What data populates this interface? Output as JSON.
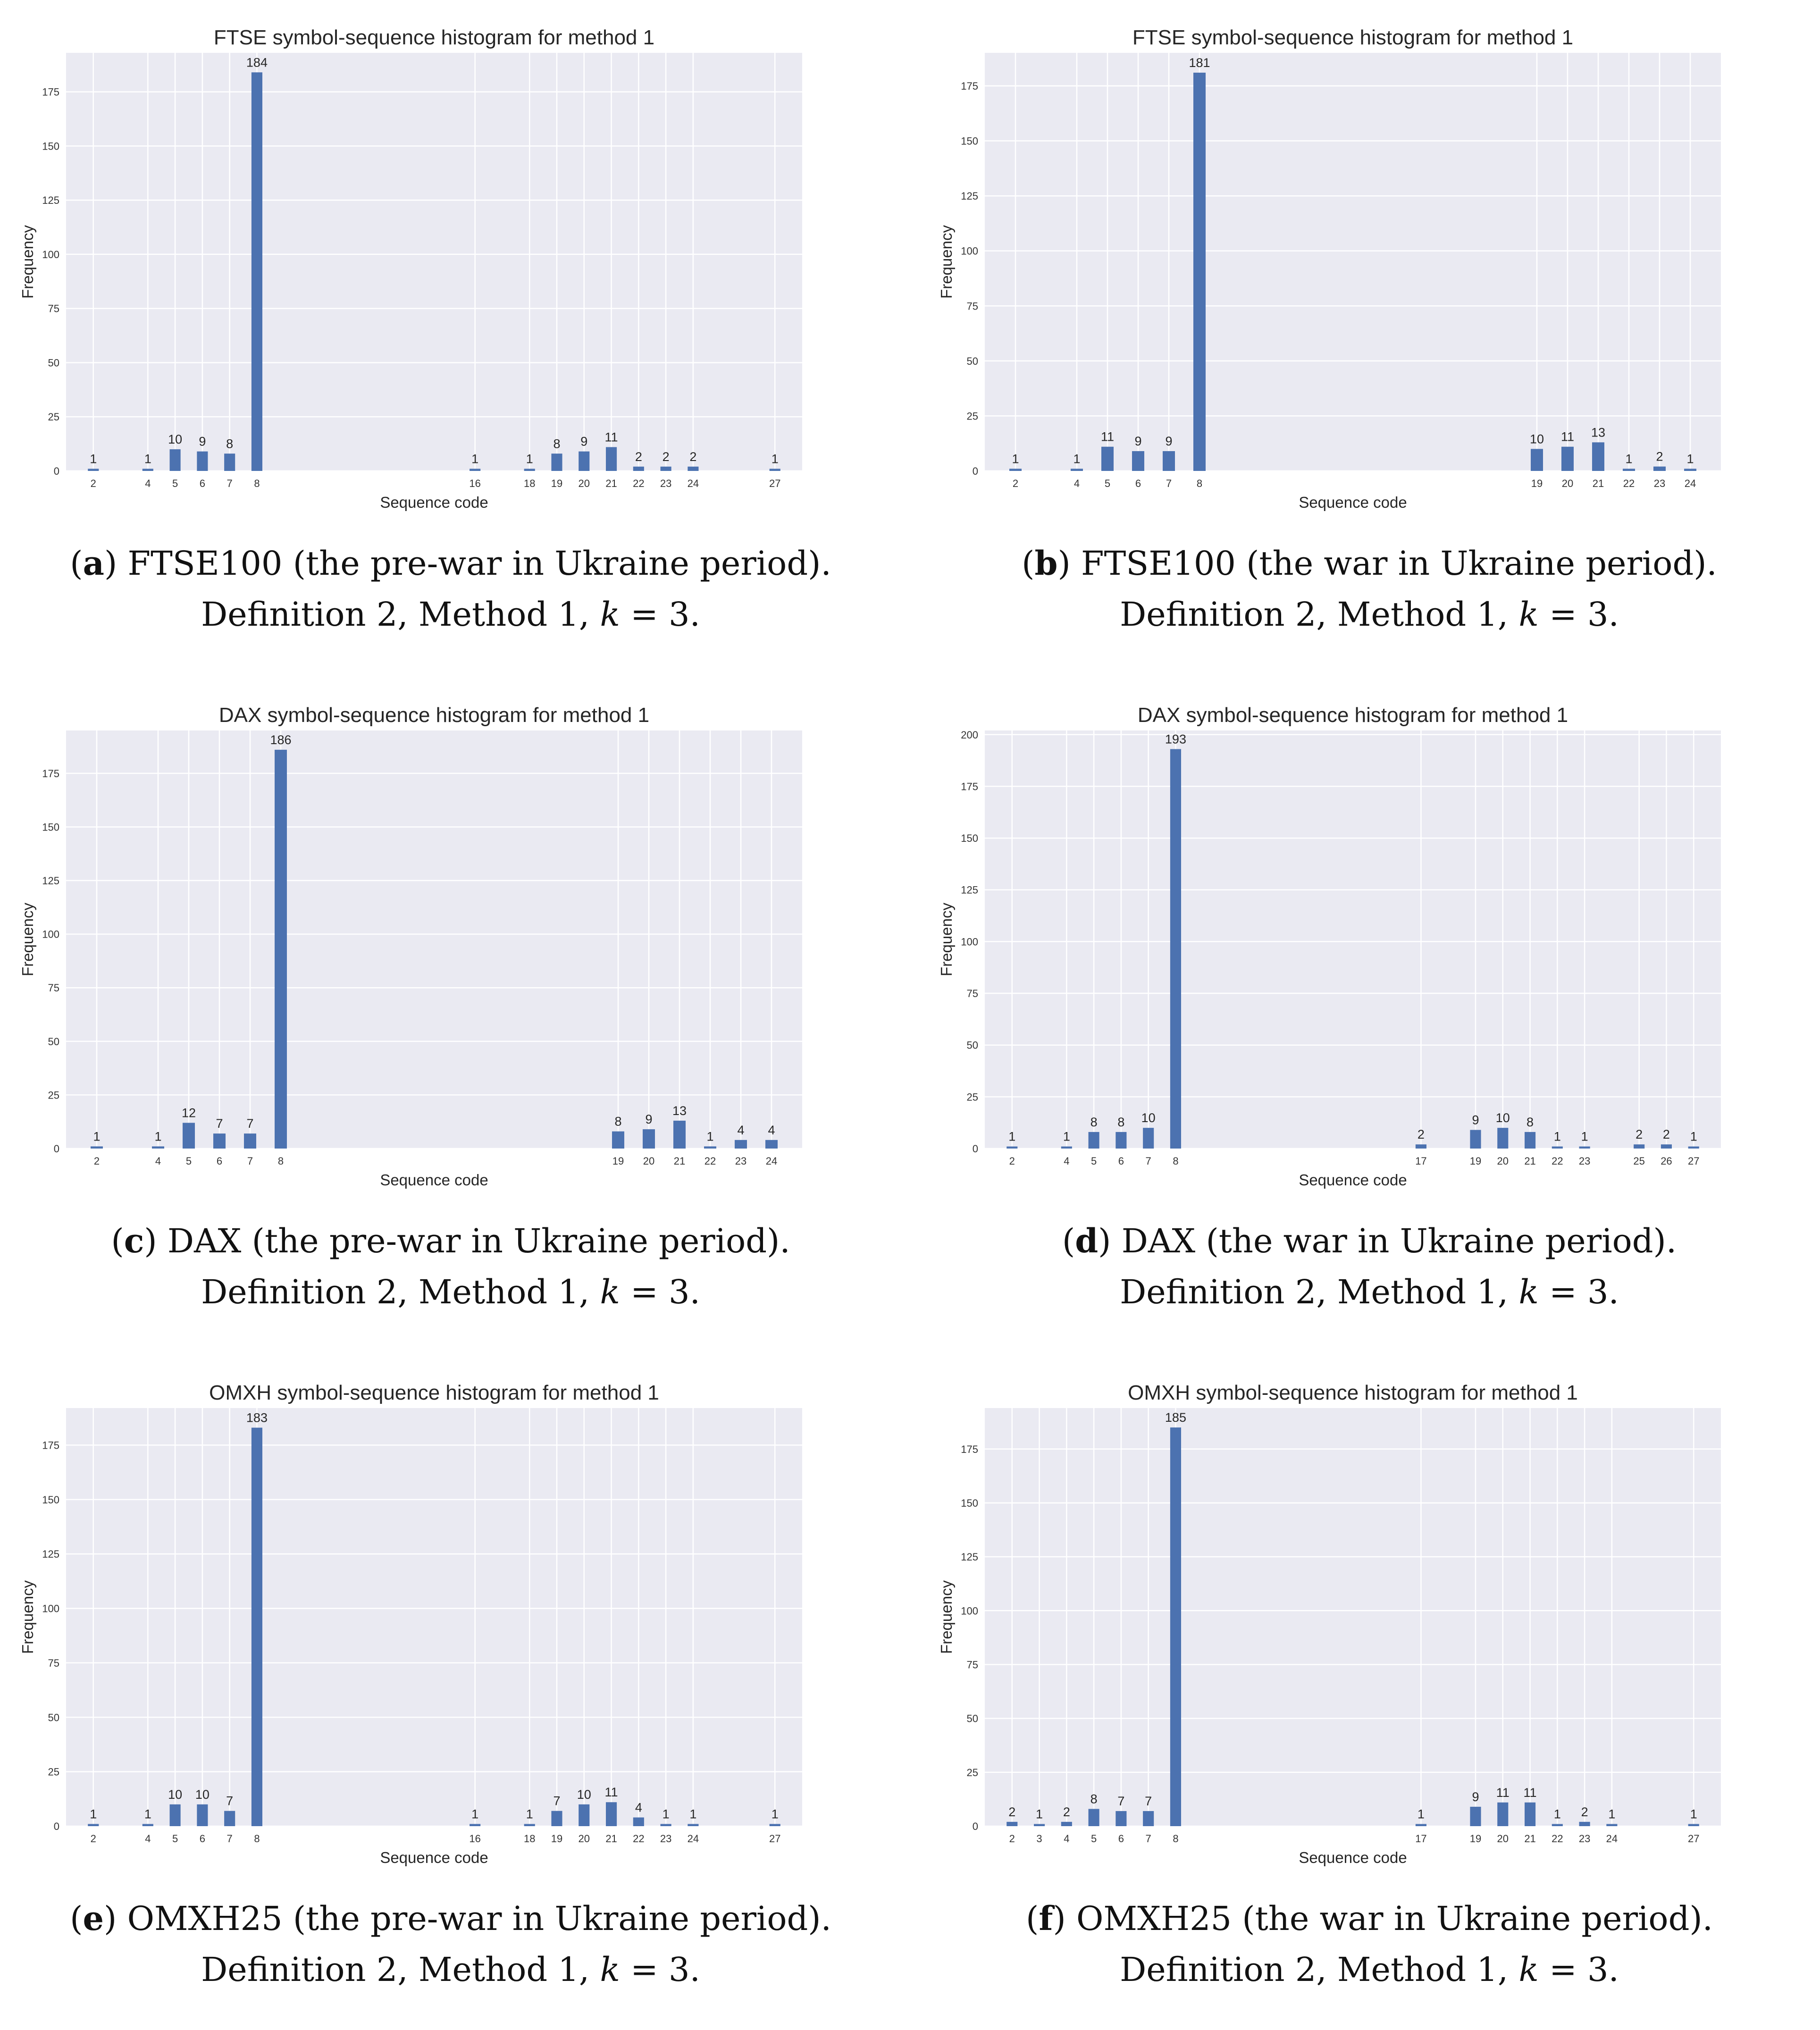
{
  "chart_data": [
    {
      "type": "bar",
      "title": "FTSE symbol-sequence histogram for method 1",
      "xlabel": "Sequence code",
      "ylabel": "Frequency",
      "categories": [
        "2",
        "4",
        "5",
        "6",
        "7",
        "8",
        "16",
        "18",
        "19",
        "20",
        "21",
        "22",
        "23",
        "24",
        "27"
      ],
      "values": [
        1,
        1,
        10,
        9,
        8,
        184,
        1,
        1,
        8,
        9,
        11,
        2,
        2,
        2,
        1
      ],
      "x_range": [
        1,
        28
      ],
      "ylim": [
        0,
        193
      ],
      "yticks": [
        0,
        25,
        50,
        75,
        100,
        125,
        150,
        175
      ],
      "color": "#4c72b0",
      "grid": true,
      "caption": {
        "label": "a",
        "text": "FTSE100 (the pre-war in Ukraine period).",
        "line2_pre": "Definition 2, Method 1,",
        "kvar": "k",
        "line2_post": "= 3."
      }
    },
    {
      "type": "bar",
      "title": "FTSE symbol-sequence histogram for method 1",
      "xlabel": "Sequence code",
      "ylabel": "Frequency",
      "categories": [
        "2",
        "4",
        "5",
        "6",
        "7",
        "8",
        "19",
        "20",
        "21",
        "22",
        "23",
        "24"
      ],
      "values": [
        1,
        1,
        11,
        9,
        9,
        181,
        10,
        11,
        13,
        1,
        2,
        1
      ],
      "x_range": [
        1,
        25
      ],
      "ylim": [
        0,
        190
      ],
      "yticks": [
        0,
        25,
        50,
        75,
        100,
        125,
        150,
        175
      ],
      "color": "#4c72b0",
      "grid": true,
      "caption": {
        "label": "b",
        "text": "FTSE100 (the war in Ukraine period).",
        "line2_pre": "Definition 2, Method 1,",
        "kvar": "k",
        "line2_post": "= 3."
      }
    },
    {
      "type": "bar",
      "title": "DAX symbol-sequence histogram for method 1",
      "xlabel": "Sequence code",
      "ylabel": "Frequency",
      "categories": [
        "2",
        "4",
        "5",
        "6",
        "7",
        "8",
        "19",
        "20",
        "21",
        "22",
        "23",
        "24"
      ],
      "values": [
        1,
        1,
        12,
        7,
        7,
        186,
        8,
        9,
        13,
        1,
        4,
        4
      ],
      "x_range": [
        1,
        25
      ],
      "ylim": [
        0,
        195
      ],
      "yticks": [
        0,
        25,
        50,
        75,
        100,
        125,
        150,
        175
      ],
      "color": "#4c72b0",
      "grid": true,
      "caption": {
        "label": "c",
        "text": "DAX (the pre-war in Ukraine period).",
        "line2_pre": "Definition 2, Method 1,",
        "kvar": "k",
        "line2_post": "= 3."
      }
    },
    {
      "type": "bar",
      "title": "DAX symbol-sequence histogram for method 1",
      "xlabel": "Sequence code",
      "ylabel": "Frequency",
      "categories": [
        "2",
        "4",
        "5",
        "6",
        "7",
        "8",
        "17",
        "19",
        "20",
        "21",
        "22",
        "23",
        "25",
        "26",
        "27"
      ],
      "values": [
        1,
        1,
        8,
        8,
        10,
        193,
        2,
        9,
        10,
        8,
        1,
        1,
        2,
        2,
        1
      ],
      "x_range": [
        1,
        28
      ],
      "ylim": [
        0,
        202
      ],
      "yticks": [
        0,
        25,
        50,
        75,
        100,
        125,
        150,
        175,
        200
      ],
      "color": "#4c72b0",
      "grid": true,
      "caption": {
        "label": "d",
        "text": "DAX (the war in Ukraine period).",
        "line2_pre": "Definition 2, Method 1,",
        "kvar": "k",
        "line2_post": "= 3."
      }
    },
    {
      "type": "bar",
      "title": "OMXH symbol-sequence histogram for method 1",
      "xlabel": "Sequence code",
      "ylabel": "Frequency",
      "categories": [
        "2",
        "4",
        "5",
        "6",
        "7",
        "8",
        "16",
        "18",
        "19",
        "20",
        "21",
        "22",
        "23",
        "24",
        "27"
      ],
      "values": [
        1,
        1,
        10,
        10,
        7,
        183,
        1,
        1,
        7,
        10,
        11,
        4,
        1,
        1,
        1
      ],
      "x_range": [
        1,
        28
      ],
      "ylim": [
        0,
        192
      ],
      "yticks": [
        0,
        25,
        50,
        75,
        100,
        125,
        150,
        175
      ],
      "color": "#4c72b0",
      "grid": true,
      "caption": {
        "label": "e",
        "text": "OMXH25 (the pre-war in Ukraine period).",
        "line2_pre": "Definition 2, Method 1,",
        "kvar": "k",
        "line2_post": "= 3."
      }
    },
    {
      "type": "bar",
      "title": "OMXH symbol-sequence histogram for method 1",
      "xlabel": "Sequence code",
      "ylabel": "Frequency",
      "categories": [
        "2",
        "3",
        "4",
        "5",
        "6",
        "7",
        "8",
        "17",
        "19",
        "20",
        "21",
        "22",
        "23",
        "24",
        "27"
      ],
      "values": [
        2,
        1,
        2,
        8,
        7,
        7,
        185,
        1,
        9,
        11,
        11,
        1,
        2,
        1,
        1
      ],
      "x_range": [
        1,
        28
      ],
      "ylim": [
        0,
        194
      ],
      "yticks": [
        0,
        25,
        50,
        75,
        100,
        125,
        150,
        175
      ],
      "color": "#4c72b0",
      "grid": true,
      "caption": {
        "label": "f",
        "text": "OMXH25 (the war in Ukraine period).",
        "line2_pre": "Definition 2, Method 1,",
        "kvar": "k",
        "line2_post": "= 3."
      }
    }
  ]
}
